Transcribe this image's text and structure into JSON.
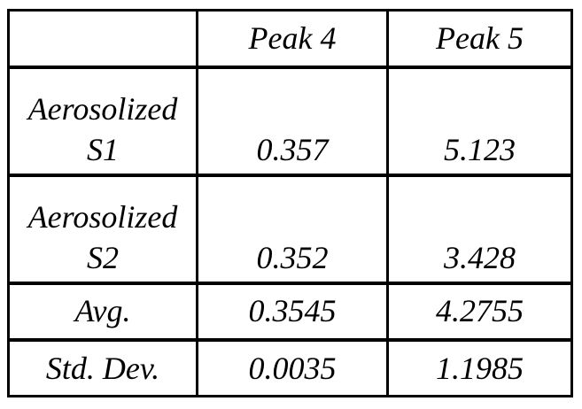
{
  "colors": {
    "background": "#ffffff",
    "border": "#000000",
    "text": "#000000"
  },
  "chart_data": {
    "type": "table",
    "header": [
      "",
      "Peak 4",
      "Peak 5"
    ],
    "rows": [
      {
        "label_lines": [
          "Aerosolized",
          "S1"
        ],
        "peak4": "0.357",
        "peak5": "5.123"
      },
      {
        "label_lines": [
          "Aerosolized",
          "S2"
        ],
        "peak4": "0.352",
        "peak5": "3.428"
      },
      {
        "label": "Avg.",
        "peak4": "0.3545",
        "peak5": "4.2755"
      },
      {
        "label": "Std. Dev.",
        "peak4": "0.0035",
        "peak5": "1.1985"
      }
    ]
  }
}
